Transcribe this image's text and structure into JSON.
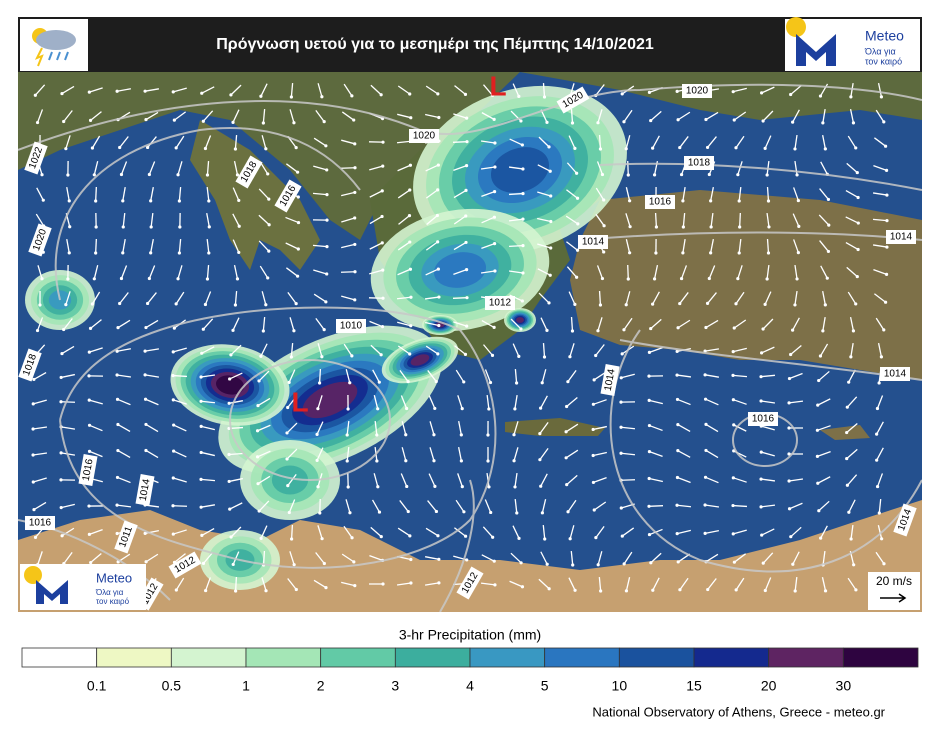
{
  "header": {
    "title": "Πρόγνωση υετού για το μεσημέρι της Πέμπτης 14/10/2021"
  },
  "logo": {
    "name": "Meteo",
    "tagline": [
      "Όλα για",
      "τον καιρό"
    ]
  },
  "map": {
    "pressure_lows": [
      "L",
      "L"
    ],
    "isobar_labels": [
      1020,
      1020,
      1020,
      1022,
      1018,
      1016,
      1018,
      1016,
      1014,
      1014,
      1020,
      1012,
      1010,
      1018,
      1014,
      1016,
      1014,
      1016,
      1014,
      1011,
      1016,
      1012,
      1012,
      1014,
      1012
    ],
    "wind_scale": "20 m/s"
  },
  "legend": {
    "title": "3-hr Precipitation (mm)",
    "colors": [
      "#ffffff",
      "#eef8c4",
      "#d4f4d0",
      "#a4e6b6",
      "#62caa6",
      "#3cae9e",
      "#3998c2",
      "#2a76c0",
      "#1a529e",
      "#14298e",
      "#5e2462",
      "#2e0440"
    ],
    "ticks": [
      0.1,
      0.5,
      1,
      2,
      3,
      4,
      5,
      10,
      15,
      20,
      30
    ]
  },
  "footer": "National Observatory of Athens, Greece - meteo.gr"
}
